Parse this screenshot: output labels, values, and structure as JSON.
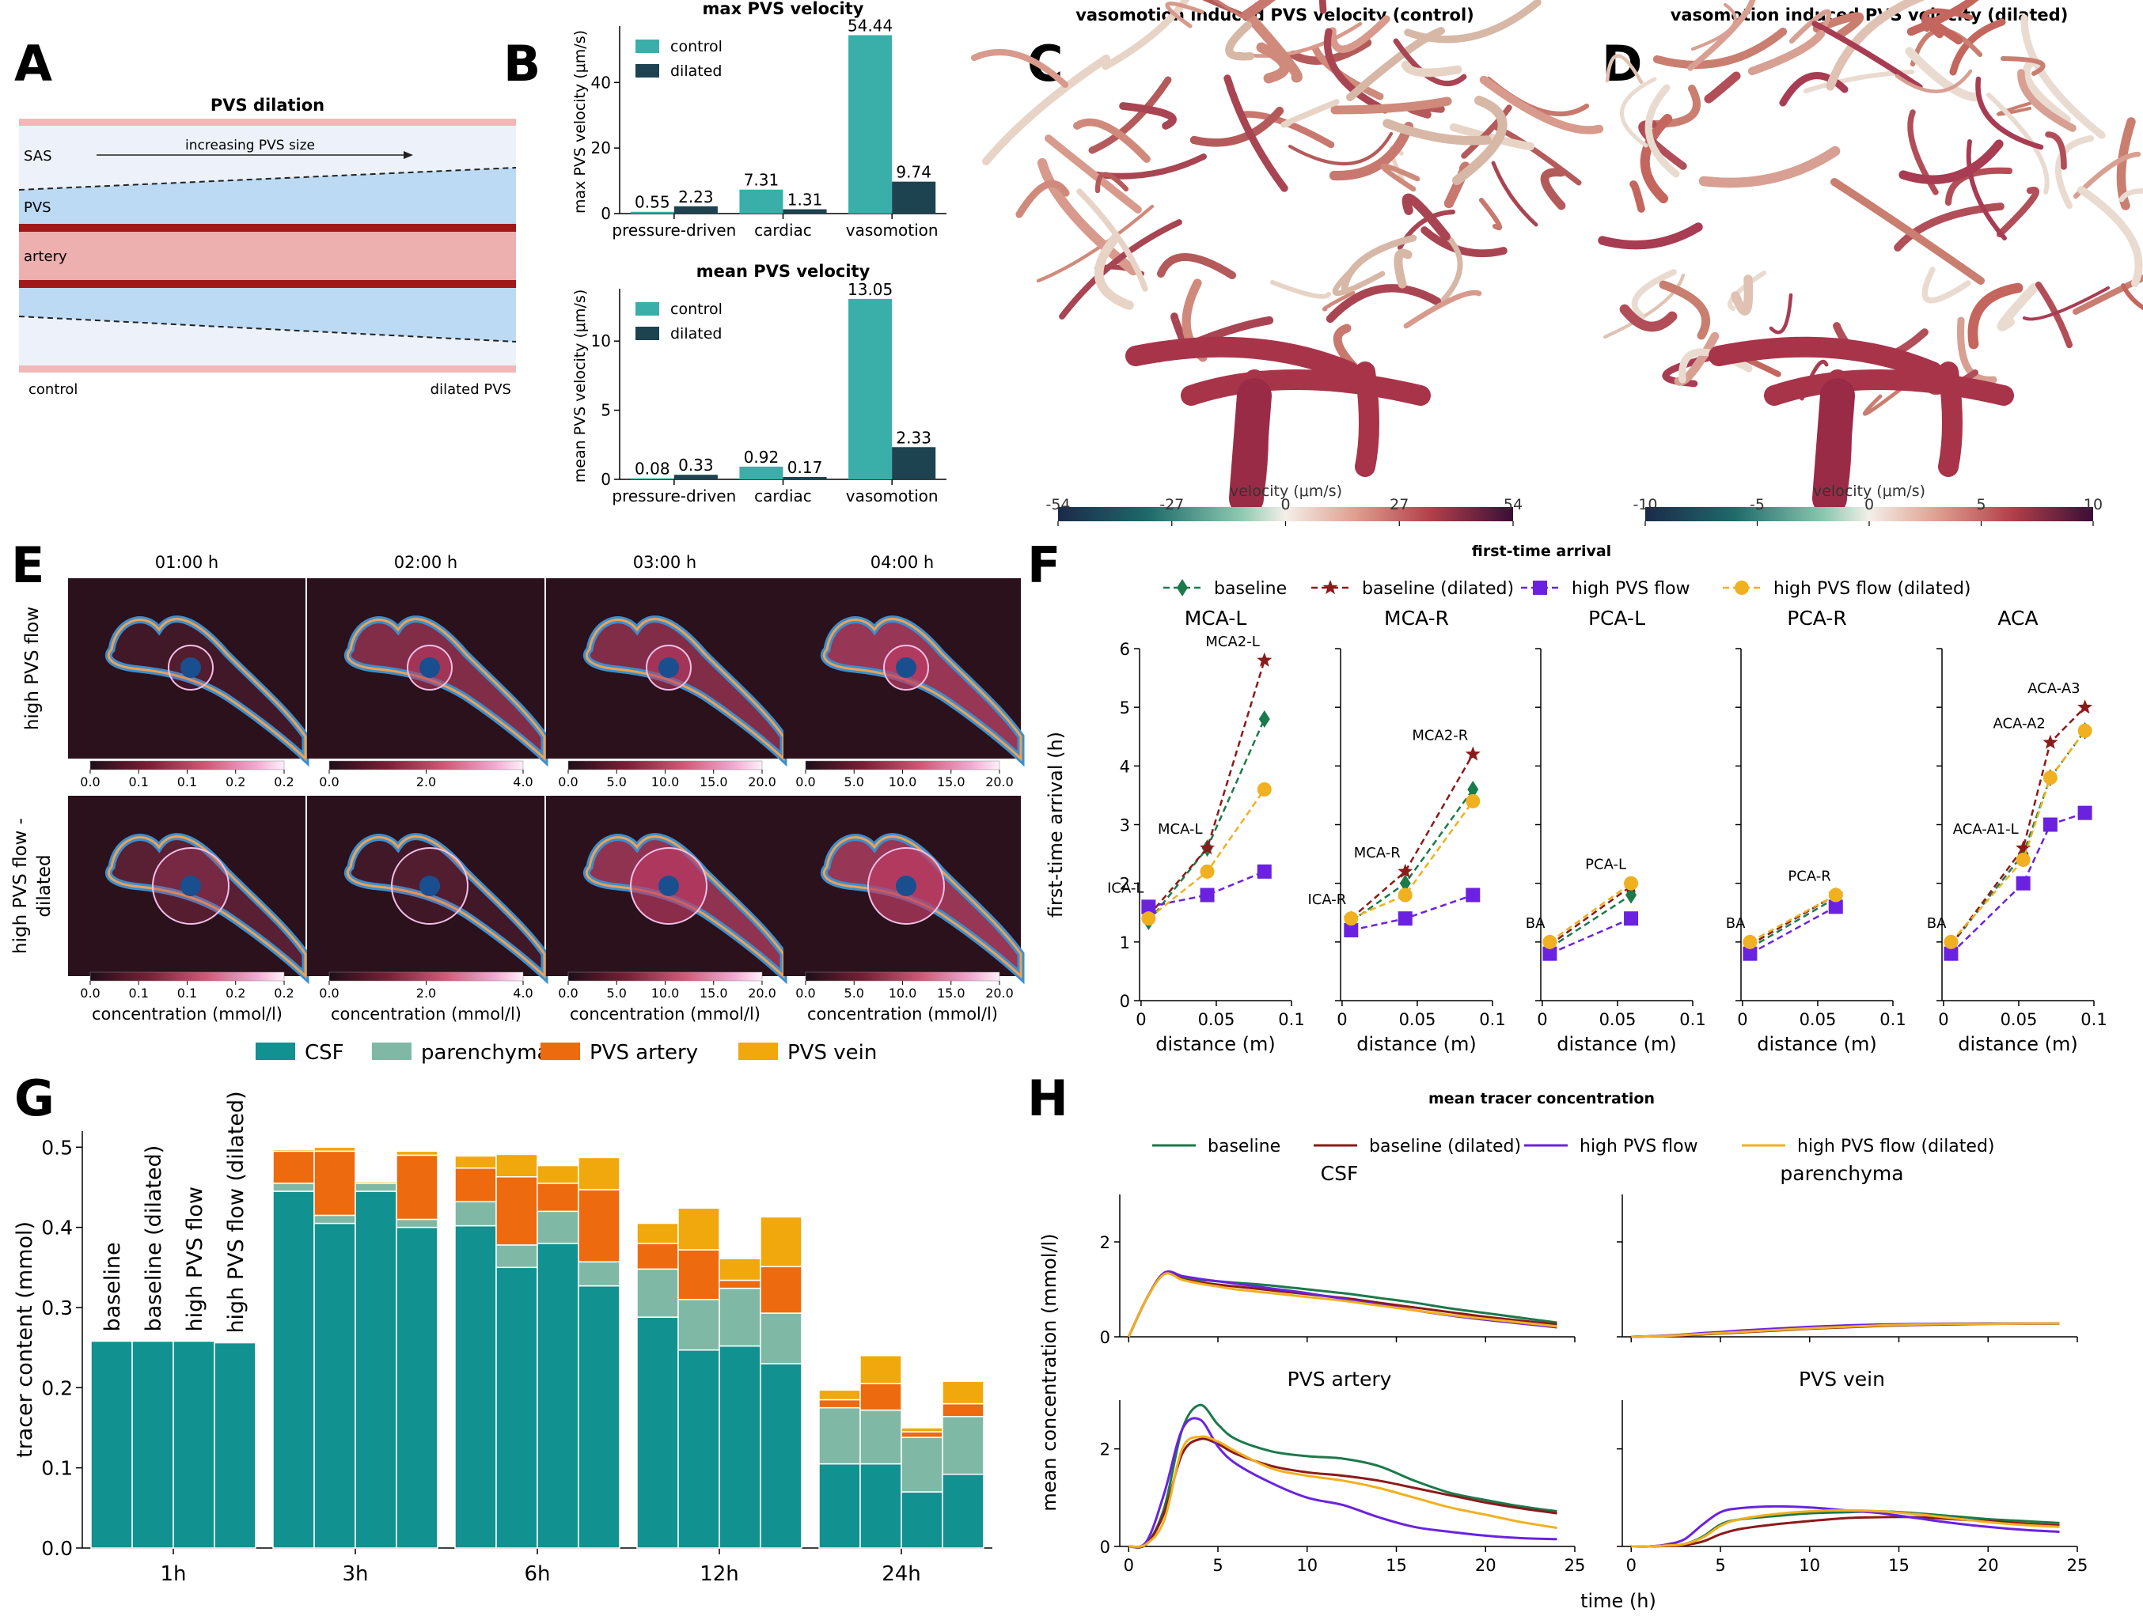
{
  "colors": {
    "teal": "#3aafa9",
    "navy": "#1d4250",
    "csf": "#11918f",
    "parenchyma": "#7fb9a6",
    "pvs_artery": "#ee6a0e",
    "pvs_vein": "#f0a80c",
    "baseline": "#1b7a4a",
    "baseline_dilated": "#8b1a1a",
    "high_pvs": "#6a22e0",
    "high_pvs_dilated": "#f0b020"
  },
  "panelA": {
    "letter": "A",
    "title": "PVS dilation",
    "arrow_text": "increasing PVS size",
    "labels": [
      "SAS",
      "PVS",
      "artery"
    ],
    "left_caption": "control",
    "right_caption": "dilated PVS"
  },
  "panelB": {
    "letter": "B"
  },
  "panelC": {
    "letter": "C",
    "title": "vasomotion induced PVS velocity (control)",
    "cbar_label": "velocity (μm/s)",
    "cbar_ticks": [
      "-54",
      "-27",
      "0",
      "27",
      "54"
    ]
  },
  "panelD": {
    "letter": "D",
    "title": "vasomotion induced PVS velocity (dilated)",
    "cbar_label": "velocity (μm/s)",
    "cbar_ticks": [
      "-10",
      "-5",
      "0",
      "5",
      "10"
    ]
  },
  "panelE": {
    "letter": "E",
    "times": [
      "01:00 h",
      "02:00 h",
      "03:00 h",
      "04:00 h"
    ],
    "row_labels": [
      [
        "high PVS flow"
      ],
      [
        "high PVS flow -",
        "dilated"
      ]
    ],
    "cbar_ticks": [
      [
        "0.0",
        "0.1",
        "0.1",
        "0.2",
        "0.2"
      ],
      [
        "0.0",
        "2.0",
        "4.0"
      ],
      [
        "0.0",
        "5.0",
        "10.0",
        "15.0",
        "20.0"
      ],
      [
        "0.0",
        "5.0",
        "10.0",
        "15.0",
        "20.0"
      ]
    ],
    "cbar_label": "concentration (mmol/l)",
    "overlay_intensity": [
      [
        0.15,
        0.55,
        0.55,
        0.7
      ],
      [
        0.3,
        0.15,
        0.65,
        0.7
      ]
    ]
  },
  "panelF": {
    "letter": "F"
  },
  "panelG": {
    "letter": "G"
  },
  "panelH": {
    "letter": "H"
  },
  "chart_data": [
    {
      "id": "B1",
      "type": "bar",
      "title": "max PVS velocity",
      "ylabel": "max PVS velocity (μm/s)",
      "ylim": [
        0,
        56
      ],
      "yticks": [
        0,
        20,
        40
      ],
      "categories": [
        "pressure-driven",
        "cardiac",
        "vasomotion"
      ],
      "series": [
        {
          "name": "control",
          "values": [
            0.55,
            7.31,
            54.44
          ],
          "labels": [
            "0.55",
            "7.31",
            "54.44"
          ]
        },
        {
          "name": "dilated",
          "values": [
            2.23,
            1.31,
            9.74
          ],
          "labels": [
            "2.23",
            "1.31",
            "9.74"
          ]
        }
      ],
      "legend": "top-left"
    },
    {
      "id": "B2",
      "type": "bar",
      "title": "mean PVS velocity",
      "ylabel": "mean PVS velocity (μm/s)",
      "ylim": [
        0,
        13.5
      ],
      "yticks": [
        0,
        5,
        10
      ],
      "categories": [
        "pressure-driven",
        "cardiac",
        "vasomotion"
      ],
      "series": [
        {
          "name": "control",
          "values": [
            0.08,
            0.92,
            13.05
          ],
          "labels": [
            "0.08",
            "0.92",
            "13.05"
          ]
        },
        {
          "name": "dilated",
          "values": [
            0.33,
            0.17,
            2.33
          ],
          "labels": [
            "0.33",
            "0.17",
            "2.33"
          ]
        }
      ],
      "legend": "top-left"
    },
    {
      "id": "F",
      "type": "line",
      "title": "first-time arrival",
      "ylabel": "first-time arrival (h)",
      "xlabel": "distance (m)",
      "ylim": [
        0,
        6
      ],
      "yticks": [
        0,
        1,
        2,
        3,
        4,
        5,
        6
      ],
      "xlim": [
        -0.001,
        0.1
      ],
      "xticks": [
        0,
        0.05,
        0.1
      ],
      "xtick_labels": [
        "0",
        "0.05",
        "0.1"
      ],
      "series_names": [
        "baseline",
        "baseline (dilated)",
        "high PVS flow",
        "high PVS flow (dilated)"
      ],
      "markers": [
        "diamond",
        "star",
        "square",
        "circle"
      ],
      "legend": "top-center",
      "subplots": [
        {
          "title": "MCA-L",
          "point_labels": [
            {
              "text": "ICA-L",
              "x": 0.005,
              "y": 1.6
            },
            {
              "text": "MCA-L",
              "x": 0.044,
              "y": 2.6
            },
            {
              "text": "MCA2-L",
              "x": 0.082,
              "y": 5.8
            }
          ],
          "x": [
            0.005,
            0.044,
            0.082
          ],
          "series": [
            [
              1.35,
              2.6,
              4.8
            ],
            [
              1.45,
              2.6,
              5.8
            ],
            [
              1.6,
              1.8,
              2.2
            ],
            [
              1.4,
              2.2,
              3.6
            ]
          ]
        },
        {
          "title": "MCA-R",
          "point_labels": [
            {
              "text": "ICA-R",
              "x": 0.006,
              "y": 1.4
            },
            {
              "text": "MCA-R",
              "x": 0.042,
              "y": 2.2
            },
            {
              "text": "MCA2-R",
              "x": 0.087,
              "y": 4.2
            }
          ],
          "x": [
            0.006,
            0.042,
            0.087
          ],
          "series": [
            [
              1.35,
              2.0,
              3.6
            ],
            [
              1.4,
              2.2,
              4.2
            ],
            [
              1.2,
              1.4,
              1.8
            ],
            [
              1.4,
              1.8,
              3.4
            ]
          ]
        },
        {
          "title": "PCA-L",
          "point_labels": [
            {
              "text": "BA",
              "x": 0.005,
              "y": 1.0
            },
            {
              "text": "PCA-L",
              "x": 0.059,
              "y": 2.0
            }
          ],
          "x": [
            0.005,
            0.059
          ],
          "series": [
            [
              0.9,
              1.8
            ],
            [
              0.95,
              1.95
            ],
            [
              0.8,
              1.4
            ],
            [
              1.0,
              2.0
            ]
          ]
        },
        {
          "title": "PCA-R",
          "point_labels": [
            {
              "text": "BA",
              "x": 0.005,
              "y": 1.0
            },
            {
              "text": "PCA-R",
              "x": 0.062,
              "y": 1.8
            }
          ],
          "x": [
            0.005,
            0.062
          ],
          "series": [
            [
              0.9,
              1.75
            ],
            [
              0.95,
              1.8
            ],
            [
              0.8,
              1.6
            ],
            [
              1.0,
              1.8
            ]
          ]
        },
        {
          "title": "ACA",
          "point_labels": [
            {
              "text": "BA",
              "x": 0.005,
              "y": 1.0
            },
            {
              "text": "ACA-A1-L",
              "x": 0.053,
              "y": 2.6
            },
            {
              "text": "ACA-A2",
              "x": 0.071,
              "y": 4.4
            },
            {
              "text": "ACA-A3",
              "x": 0.094,
              "y": 5.0
            }
          ],
          "x": [
            0.005,
            0.053,
            0.071,
            0.094
          ],
          "series": [
            [
              0.95,
              2.5,
              3.8,
              4.6
            ],
            [
              0.95,
              2.6,
              4.4,
              5.0
            ],
            [
              0.8,
              2.0,
              3.0,
              3.2
            ],
            [
              1.0,
              2.4,
              3.8,
              4.6
            ]
          ]
        }
      ]
    },
    {
      "id": "G",
      "type": "bar",
      "stacked": true,
      "ylabel": "tracer content (mmol)",
      "ylim": [
        0,
        0.52
      ],
      "yticks": [
        0.0,
        0.1,
        0.2,
        0.3,
        0.4,
        0.5
      ],
      "categories": [
        "1h",
        "3h",
        "6h",
        "12h",
        "24h"
      ],
      "bar_labels": [
        "baseline",
        "baseline (dilated)",
        "high PVS flow",
        "high PVS flow (dilated)"
      ],
      "components": [
        "CSF",
        "parenchyma",
        "PVS artery",
        "PVS vein"
      ],
      "legend": "top-center",
      "values": [
        [
          [
            0.258,
            0,
            0,
            0
          ],
          [
            0.258,
            0,
            0,
            0
          ],
          [
            0.258,
            0,
            0,
            0
          ],
          [
            0.256,
            0,
            0,
            0
          ]
        ],
        [
          [
            0.445,
            0.01,
            0.04,
            0.002
          ],
          [
            0.405,
            0.01,
            0.08,
            0.005
          ],
          [
            0.445,
            0.01,
            0.0,
            0.002
          ],
          [
            0.4,
            0.01,
            0.08,
            0.005
          ]
        ],
        [
          [
            0.402,
            0.03,
            0.042,
            0.015
          ],
          [
            0.35,
            0.028,
            0.085,
            0.028
          ],
          [
            0.38,
            0.04,
            0.035,
            0.022
          ],
          [
            0.327,
            0.03,
            0.09,
            0.04
          ]
        ],
        [
          [
            0.288,
            0.06,
            0.032,
            0.025
          ],
          [
            0.247,
            0.063,
            0.062,
            0.052
          ],
          [
            0.252,
            0.072,
            0.01,
            0.027
          ],
          [
            0.23,
            0.063,
            0.058,
            0.062
          ]
        ],
        [
          [
            0.105,
            0.07,
            0.01,
            0.012
          ],
          [
            0.105,
            0.067,
            0.033,
            0.035
          ],
          [
            0.07,
            0.068,
            0.007,
            0.005
          ],
          [
            0.092,
            0.072,
            0.016,
            0.028
          ]
        ]
      ]
    },
    {
      "id": "H",
      "type": "line",
      "title": "mean tracer concentration",
      "ylabel": "mean concentration (mmol/l)",
      "xlabel": "time (h)",
      "xlim": [
        -0.5,
        25
      ],
      "xticks": [
        0,
        5,
        10,
        15,
        20,
        25
      ],
      "ylim": [
        0,
        3
      ],
      "yticks": [
        0,
        2
      ],
      "series_names": [
        "baseline",
        "baseline (dilated)",
        "high PVS flow",
        "high PVS flow (dilated)"
      ],
      "legend": "top-center",
      "x": [
        0,
        1,
        2,
        3,
        4,
        5,
        6,
        8,
        10,
        12,
        14,
        16,
        18,
        20,
        22,
        24
      ],
      "subplots": [
        {
          "title": "CSF",
          "show_xticklabels": false,
          "series": [
            [
              0,
              0.8,
              1.35,
              1.25,
              1.2,
              1.17,
              1.14,
              1.08,
              1.0,
              0.92,
              0.82,
              0.72,
              0.6,
              0.5,
              0.4,
              0.3
            ],
            [
              0,
              0.8,
              1.35,
              1.22,
              1.15,
              1.1,
              1.06,
              0.98,
              0.9,
              0.82,
              0.72,
              0.62,
              0.52,
              0.42,
              0.34,
              0.26
            ],
            [
              0,
              0.8,
              1.35,
              1.28,
              1.22,
              1.17,
              1.12,
              1.02,
              0.92,
              0.8,
              0.68,
              0.56,
              0.45,
              0.36,
              0.28,
              0.2
            ],
            [
              0,
              0.8,
              1.32,
              1.2,
              1.12,
              1.06,
              1.0,
              0.92,
              0.84,
              0.76,
              0.66,
              0.56,
              0.46,
              0.38,
              0.3,
              0.22
            ]
          ]
        },
        {
          "title": "parenchyma",
          "show_xticklabels": false,
          "series": [
            [
              0,
              0.01,
              0.02,
              0.04,
              0.06,
              0.08,
              0.1,
              0.14,
              0.18,
              0.22,
              0.24,
              0.26,
              0.27,
              0.28,
              0.28,
              0.28
            ],
            [
              0,
              0.01,
              0.02,
              0.03,
              0.05,
              0.07,
              0.09,
              0.13,
              0.17,
              0.2,
              0.23,
              0.25,
              0.26,
              0.27,
              0.28,
              0.28
            ],
            [
              0,
              0.01,
              0.03,
              0.05,
              0.08,
              0.1,
              0.13,
              0.17,
              0.21,
              0.24,
              0.26,
              0.27,
              0.28,
              0.28,
              0.28,
              0.28
            ],
            [
              0,
              0.01,
              0.02,
              0.04,
              0.06,
              0.08,
              0.1,
              0.14,
              0.18,
              0.21,
              0.24,
              0.26,
              0.27,
              0.27,
              0.28,
              0.28
            ]
          ]
        },
        {
          "title": "PVS artery",
          "show_xticklabels": true,
          "series": [
            [
              0,
              0.05,
              0.8,
              2.4,
              2.9,
              2.5,
              2.2,
              1.95,
              1.85,
              1.8,
              1.65,
              1.35,
              1.1,
              0.95,
              0.82,
              0.72
            ],
            [
              0,
              0.05,
              0.7,
              1.9,
              2.2,
              2.1,
              1.9,
              1.65,
              1.52,
              1.45,
              1.35,
              1.2,
              1.05,
              0.9,
              0.78,
              0.68
            ],
            [
              0,
              0.1,
              1.1,
              2.4,
              2.6,
              2.05,
              1.7,
              1.3,
              1.0,
              0.85,
              0.6,
              0.4,
              0.3,
              0.22,
              0.17,
              0.15
            ],
            [
              0,
              0.05,
              0.55,
              2.0,
              2.25,
              2.15,
              1.95,
              1.6,
              1.45,
              1.35,
              1.2,
              1.0,
              0.8,
              0.65,
              0.5,
              0.38
            ]
          ]
        },
        {
          "title": "PVS vein",
          "show_xticklabels": true,
          "series": [
            [
              0,
              0.0,
              0.02,
              0.05,
              0.2,
              0.45,
              0.55,
              0.62,
              0.68,
              0.7,
              0.72,
              0.68,
              0.62,
              0.56,
              0.52,
              0.48
            ],
            [
              0,
              0.0,
              0.01,
              0.03,
              0.1,
              0.25,
              0.35,
              0.45,
              0.52,
              0.58,
              0.6,
              0.6,
              0.56,
              0.52,
              0.47,
              0.43
            ],
            [
              0,
              0.0,
              0.04,
              0.15,
              0.45,
              0.7,
              0.78,
              0.82,
              0.8,
              0.74,
              0.68,
              0.58,
              0.48,
              0.4,
              0.34,
              0.3
            ],
            [
              0,
              0.0,
              0.02,
              0.05,
              0.18,
              0.42,
              0.55,
              0.66,
              0.72,
              0.74,
              0.72,
              0.66,
              0.58,
              0.5,
              0.44,
              0.4
            ]
          ]
        }
      ]
    }
  ]
}
